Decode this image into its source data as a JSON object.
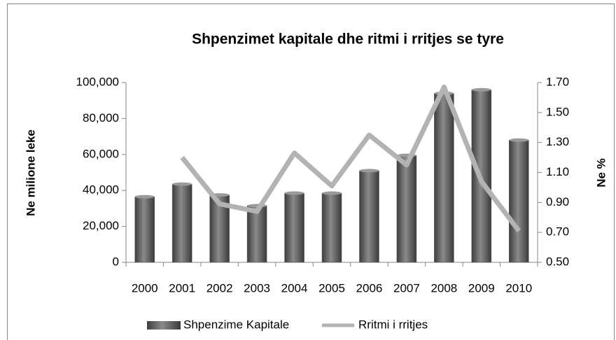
{
  "chart_data": {
    "type": "bar",
    "title": "Shpenzimet kapitale dhe ritmi i rritjes se tyre",
    "ylabel": "Ne milione leke",
    "y2label": "Ne %",
    "categories": [
      "2000",
      "2001",
      "2002",
      "2003",
      "2004",
      "2005",
      "2006",
      "2007",
      "2008",
      "2009",
      "2010"
    ],
    "series": [
      {
        "name": "Shpenzime Kapitale",
        "type": "bar",
        "color": "#5a5a5a",
        "values": [
          36500,
          43500,
          37500,
          31500,
          38500,
          38500,
          51000,
          59500,
          94000,
          96000,
          68000
        ]
      },
      {
        "name": "Rritmi i rritjes",
        "type": "line",
        "axis": "y2",
        "color": "#b3b3b3",
        "values": [
          null,
          1.2,
          0.89,
          0.84,
          1.23,
          1.01,
          1.35,
          1.15,
          1.67,
          1.04,
          0.71
        ]
      }
    ],
    "ylim": [
      0,
      100000
    ],
    "yticks": [
      0,
      {
        "value": 20000,
        "label": "20,000"
      },
      {
        "value": 40000,
        "label": "40,000"
      },
      {
        "value": 60000,
        "label": "60,000"
      },
      {
        "value": 80000,
        "label": "80,000"
      },
      {
        "value": 100000,
        "label": "100,000"
      }
    ],
    "y2lim": [
      0.5,
      1.7
    ],
    "y2ticks": [
      {
        "value": 0.5,
        "label": "0.50"
      },
      {
        "value": 0.7,
        "label": "0.70"
      },
      {
        "value": 0.9,
        "label": "0.90"
      },
      {
        "value": 1.1,
        "label": "1.10"
      },
      {
        "value": 1.3,
        "label": "1.30"
      },
      {
        "value": 1.5,
        "label": "1.50"
      },
      {
        "value": 1.7,
        "label": "1.70"
      }
    ],
    "grid": false,
    "legend": "bottom"
  }
}
